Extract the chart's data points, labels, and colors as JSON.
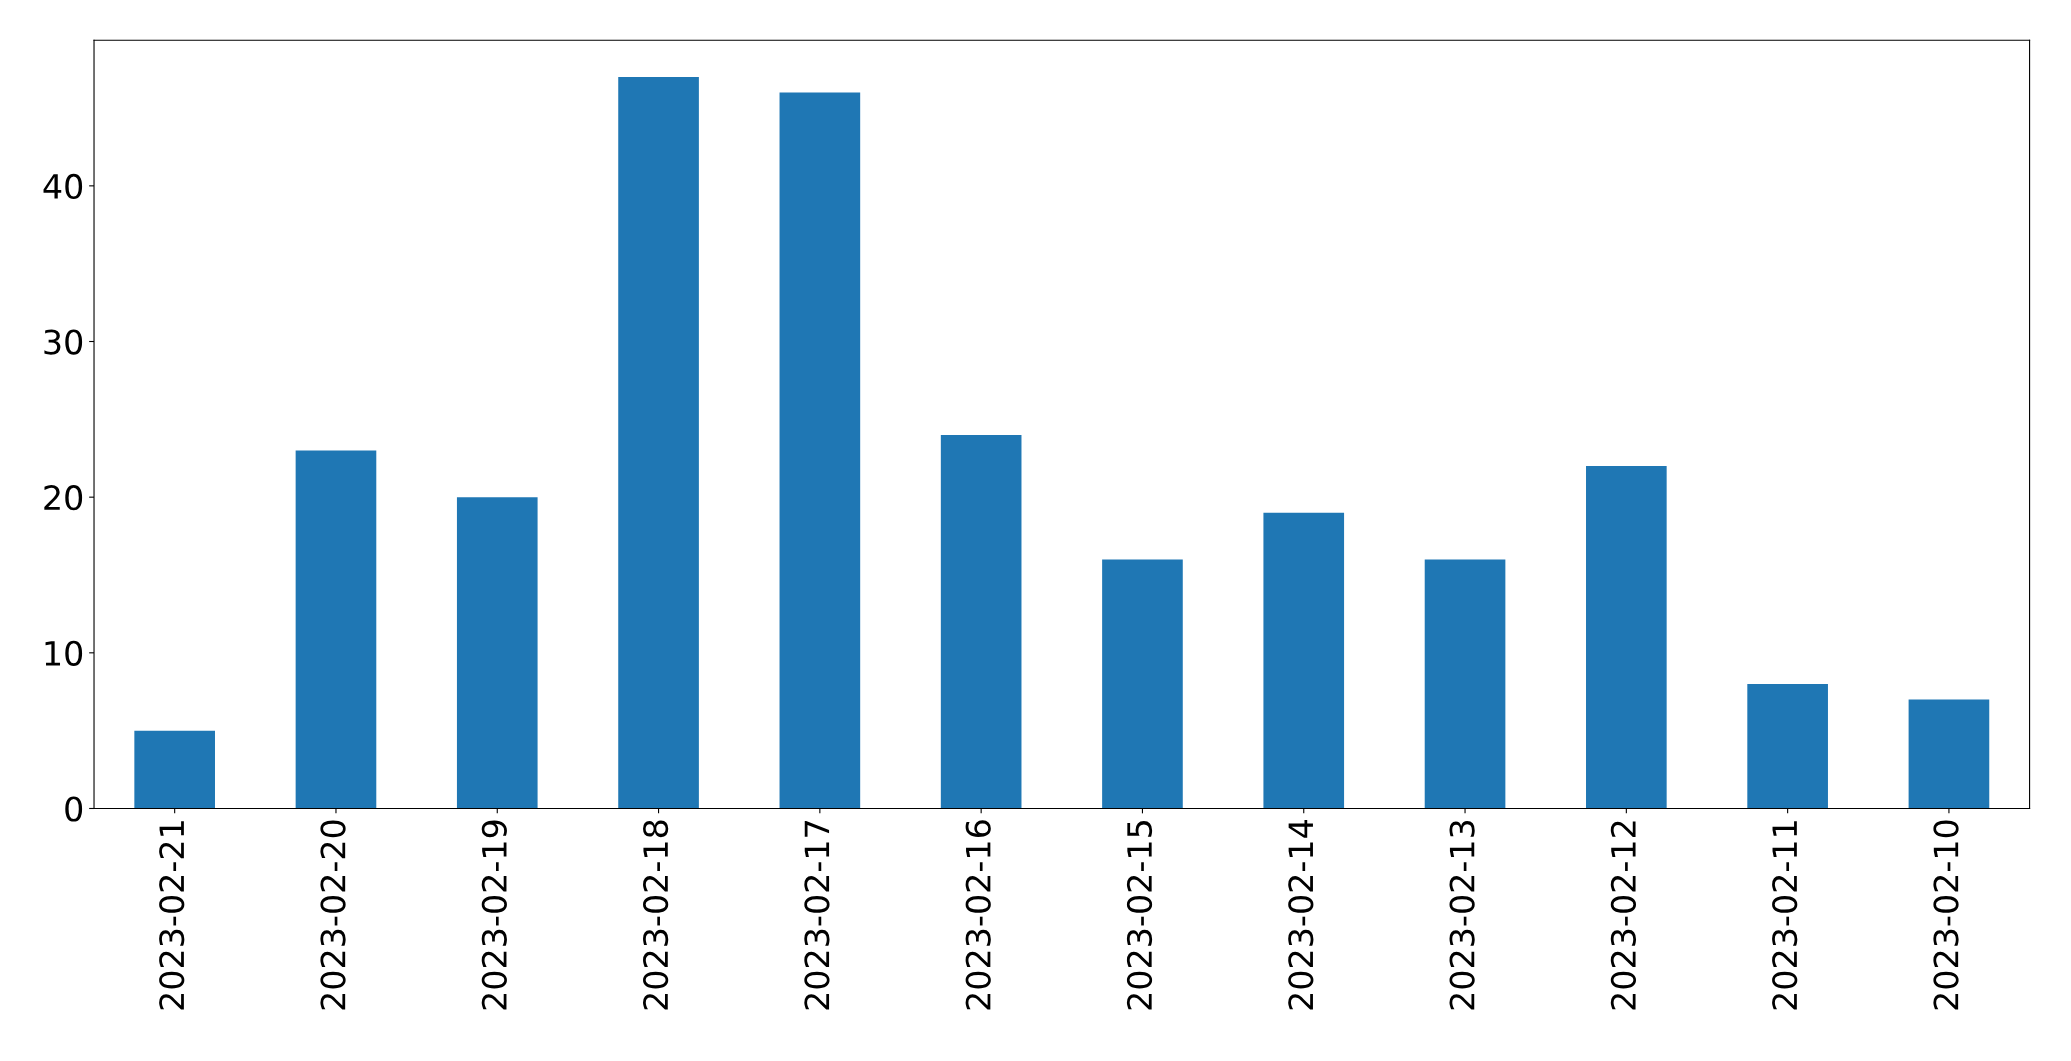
{
  "chart_data": {
    "type": "bar",
    "categories": [
      "2023-02-21",
      "2023-02-20",
      "2023-02-19",
      "2023-02-18",
      "2023-02-17",
      "2023-02-16",
      "2023-02-15",
      "2023-02-14",
      "2023-02-13",
      "2023-02-12",
      "2023-02-11",
      "2023-02-10"
    ],
    "values": [
      5,
      23,
      20,
      47,
      46,
      24,
      16,
      19,
      16,
      22,
      8,
      7
    ],
    "color": "#1f77b4",
    "ylim": [
      0,
      49.35
    ],
    "yticks": [
      0,
      10,
      20,
      30,
      40
    ],
    "grid": false
  }
}
